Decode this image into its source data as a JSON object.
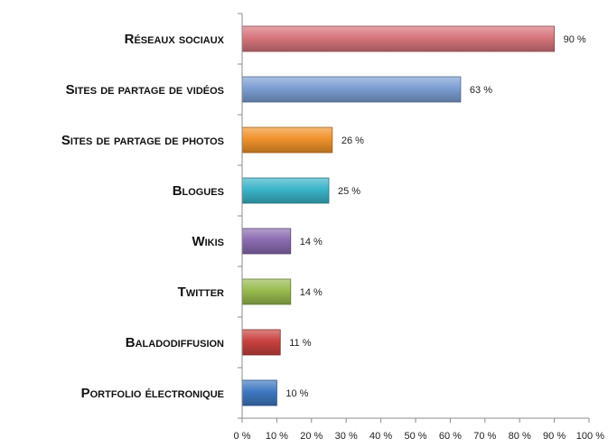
{
  "chart_data": {
    "type": "bar",
    "orientation": "horizontal",
    "title": "",
    "xlabel": "",
    "ylabel": "",
    "xlim": [
      0,
      100
    ],
    "grid": false,
    "categories": [
      "Réseaux sociaux",
      "Sites de partage de vidéos",
      "Sites de partage de photos",
      "Blogues",
      "Wikis",
      "Twitter",
      "Baladodiffusion",
      "Portfolio électronique"
    ],
    "values": [
      90,
      63,
      26,
      25,
      14,
      14,
      11,
      10
    ],
    "value_labels": [
      "90 %",
      "63 %",
      "26 %",
      "25 %",
      "14 %",
      "14 %",
      "11 %",
      "10 %"
    ],
    "x_ticks": [
      0,
      10,
      20,
      30,
      40,
      50,
      60,
      70,
      80,
      90,
      100
    ],
    "x_tick_labels": [
      "0 %",
      "10 %",
      "20 %",
      "30 %",
      "40 %",
      "50 %",
      "60 %",
      "70 %",
      "80 %",
      "90 %",
      "100 %"
    ],
    "bar_colors": [
      "#d7757b",
      "#7c9ed3",
      "#f0922b",
      "#3ab4c8",
      "#8a6cb0",
      "#98bb4f",
      "#c8413f",
      "#3f78c0"
    ]
  }
}
